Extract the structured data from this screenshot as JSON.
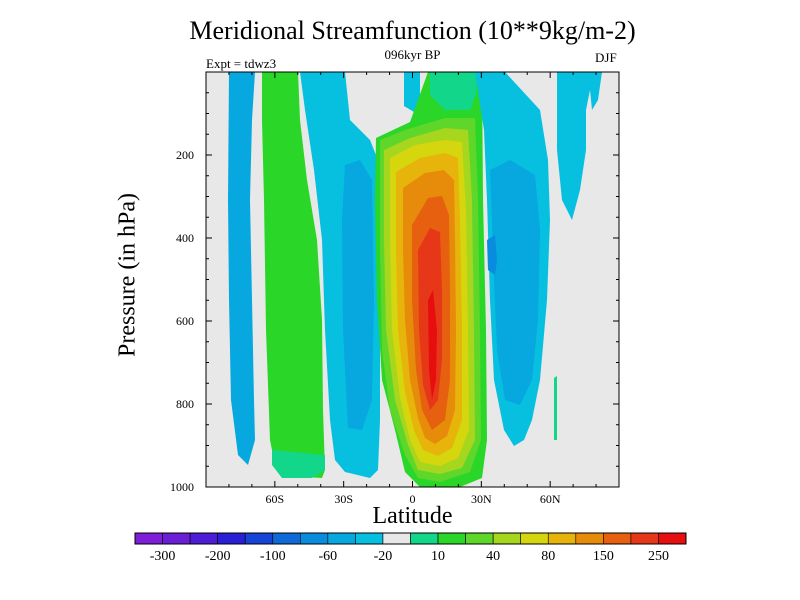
{
  "chart_data": {
    "type": "heatmap",
    "title": "Meridional Streamfunction (10**9kg/m-2)",
    "subtitle": "096kyr BP",
    "left_label": "Expt = tdwz3",
    "right_label": "DJF",
    "xlabel": "Latitude",
    "ylabel": "Pressure (in hPa)",
    "x_range": [
      -90,
      90
    ],
    "x_ticks": [
      {
        "value": -60,
        "label": "60S"
      },
      {
        "value": -30,
        "label": "30S"
      },
      {
        "value": 0,
        "label": "0"
      },
      {
        "value": 30,
        "label": "30N"
      },
      {
        "value": 60,
        "label": "60N"
      }
    ],
    "y_range": [
      0,
      1000
    ],
    "y_reversed": true,
    "y_ticks": [
      {
        "value": 200,
        "label": "200"
      },
      {
        "value": 400,
        "label": "400"
      },
      {
        "value": 600,
        "label": "600"
      },
      {
        "value": 800,
        "label": "800"
      },
      {
        "value": 1000,
        "label": "1000"
      }
    ],
    "colorbar": {
      "colors": [
        "#7e1ed8",
        "#6a1fd6",
        "#4d1ed6",
        "#2a1fd6",
        "#1644d6",
        "#0f6ad8",
        "#0a8cde",
        "#07a7e0",
        "#07c0e0",
        "#e8e8e8",
        "#12d68a",
        "#2ad628",
        "#5fd62a",
        "#a6d61e",
        "#d6d60e",
        "#e6b40a",
        "#e68c0a",
        "#e66010",
        "#e63818",
        "#e60e0e"
      ],
      "labels": [
        {
          "value": "-300",
          "after_index": 0
        },
        {
          "value": "-200",
          "after_index": 2
        },
        {
          "value": "-100",
          "after_index": 4
        },
        {
          "value": "-60",
          "after_index": 6
        },
        {
          "value": "-20",
          "after_index": 8
        },
        {
          "value": "10",
          "after_index": 10
        },
        {
          "value": "40",
          "after_index": 12
        },
        {
          "value": "80",
          "after_index": 14
        },
        {
          "value": "150",
          "after_index": 16
        },
        {
          "value": "250",
          "after_index": 18
        }
      ]
    },
    "background_color": "#e8e8e8",
    "features": [
      {
        "name": "tropical positive cell",
        "center_lat": 8,
        "center_p": 500,
        "peak": 250,
        "lat_range": [
          -15,
          30
        ],
        "p_range": [
          80,
          1000
        ]
      },
      {
        "name": "southern midlatitude positive band",
        "center_lat": -62,
        "peak": 10,
        "lat_range": [
          -70,
          -50
        ]
      },
      {
        "name": "southern negative band",
        "center_lat": -35,
        "peak": -60,
        "lat_range": [
          -45,
          -20
        ]
      },
      {
        "name": "polar negative band",
        "center_lat": -78,
        "peak": -20,
        "lat_range": [
          -82,
          -72
        ]
      },
      {
        "name": "northern negative cell",
        "center_lat": 42,
        "peak": -60,
        "lat_range": [
          25,
          60
        ]
      }
    ]
  }
}
